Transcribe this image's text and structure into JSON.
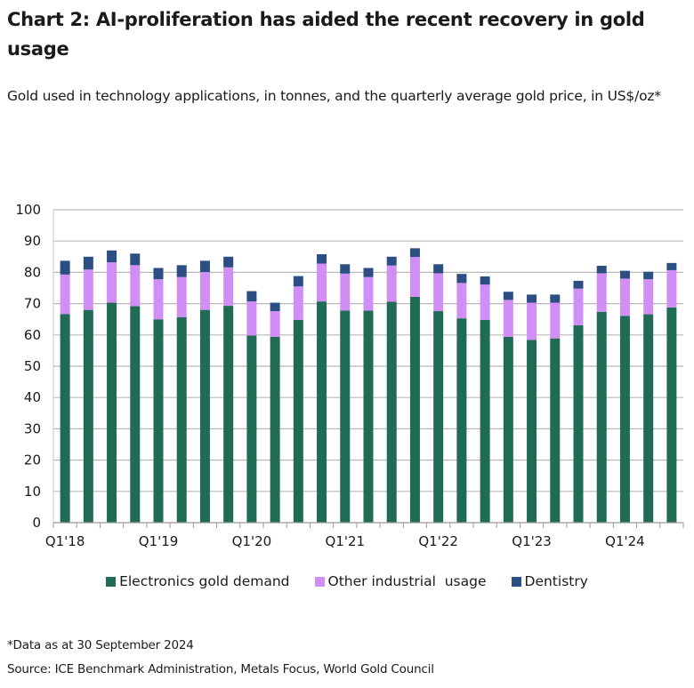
{
  "header": {
    "title": "Chart 2:  AI-proliferation has aided the recent recovery in gold usage",
    "subtitle": "Gold used in technology applications, in tonnes, and the quarterly average gold price, in US$/oz*"
  },
  "footer": {
    "note": "*Data as at 30 September 2024",
    "source": "Source: ICE Benchmark Administration, Metals Focus, World Gold Council"
  },
  "chart_data": {
    "type": "bar",
    "stacked": true,
    "title": "Chart 2:  AI-proliferation has aided the recent recovery in gold usage",
    "subtitle": "Gold used in technology applications, in tonnes, and the quarterly average gold price, in US$/oz*",
    "xlabel": "",
    "ylabel": "",
    "ylim": [
      0,
      100
    ],
    "yticks": [
      0,
      10,
      20,
      30,
      40,
      50,
      60,
      70,
      80,
      90,
      100
    ],
    "grid": true,
    "legend_position": "bottom",
    "categories": [
      "Q1'18",
      "Q2'18",
      "Q3'18",
      "Q4'18",
      "Q1'19",
      "Q2'19",
      "Q3'19",
      "Q4'19",
      "Q1'20",
      "Q2'20",
      "Q3'20",
      "Q4'20",
      "Q1'21",
      "Q2'21",
      "Q3'21",
      "Q4'21",
      "Q1'22",
      "Q2'22",
      "Q3'22",
      "Q4'22",
      "Q1'23",
      "Q2'23",
      "Q3'23",
      "Q4'23",
      "Q1'24",
      "Q2'24",
      "Q3'24"
    ],
    "xtick_labels": [
      "Q1'18",
      "Q1'19",
      "Q1'20",
      "Q1'21",
      "Q1'22",
      "Q1'23",
      "Q1'24"
    ],
    "xtick_label_every": 4,
    "series": [
      {
        "name": "Electronics gold demand",
        "color": "#1f6b55",
        "values": [
          66.7,
          68.0,
          70.3,
          69.2,
          65.0,
          65.7,
          68.0,
          69.3,
          59.8,
          59.4,
          64.8,
          70.7,
          67.8,
          67.8,
          70.6,
          72.2,
          67.6,
          65.3,
          64.8,
          59.4,
          58.4,
          58.9,
          63.1,
          67.4,
          66.1,
          66.6,
          68.8
        ]
      },
      {
        "name": "Other industrial  usage",
        "color": "#d18ff5",
        "values": [
          12.6,
          12.9,
          12.9,
          13.1,
          12.8,
          12.8,
          12.1,
          12.3,
          10.9,
          8.2,
          10.7,
          12.1,
          11.8,
          10.7,
          11.6,
          12.7,
          12.1,
          11.3,
          11.3,
          11.8,
          11.9,
          11.4,
          11.7,
          12.3,
          11.9,
          11.2,
          11.9
        ]
      },
      {
        "name": "Dentistry",
        "color": "#2b4f82",
        "values": [
          4.4,
          4.1,
          3.8,
          3.7,
          3.6,
          3.8,
          3.6,
          3.4,
          3.3,
          2.7,
          3.3,
          3.0,
          3.0,
          2.9,
          2.8,
          2.8,
          2.9,
          2.9,
          2.6,
          2.6,
          2.6,
          2.6,
          2.5,
          2.4,
          2.5,
          2.4,
          2.3
        ]
      }
    ]
  }
}
